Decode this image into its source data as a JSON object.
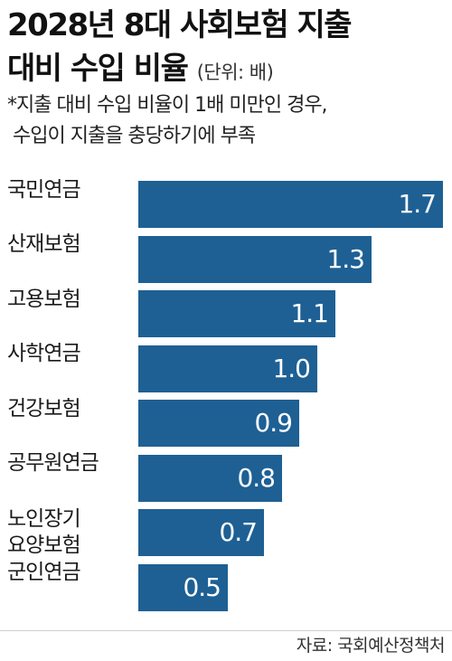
{
  "title": {
    "line1": "2028년 8대 사회보험 지출",
    "line2": "대비 수입 비율",
    "unit": "(단위: 배)"
  },
  "note": {
    "line1": "*지출 대비 수입 비율이 1배 미만인 경우,",
    "line2": "수입이 지출을 충당하기에 부족"
  },
  "source": "자료: 국회예산정책처",
  "colors": {
    "bar": "#1e6094",
    "bar_text": "#ffffff"
  },
  "chart_data": {
    "type": "bar",
    "orientation": "horizontal",
    "categories": [
      [
        "국민연금"
      ],
      [
        "산재보험"
      ],
      [
        "고용보험"
      ],
      [
        "사학연금"
      ],
      [
        "건강보험"
      ],
      [
        "공무원연금"
      ],
      [
        "노인장기",
        "요양보험"
      ],
      [
        "군인연금"
      ]
    ],
    "values": [
      1.7,
      1.3,
      1.1,
      1.0,
      0.9,
      0.8,
      0.7,
      0.5
    ],
    "value_labels": [
      "1.7",
      "1.3",
      "1.1",
      "1.0",
      "0.9",
      "0.8",
      "0.7",
      "0.5"
    ],
    "title": "2028년 8대 사회보험 지출 대비 수입 비율",
    "unit": "배",
    "xlim": [
      0,
      1.7
    ],
    "grid": false,
    "legend": "none"
  }
}
